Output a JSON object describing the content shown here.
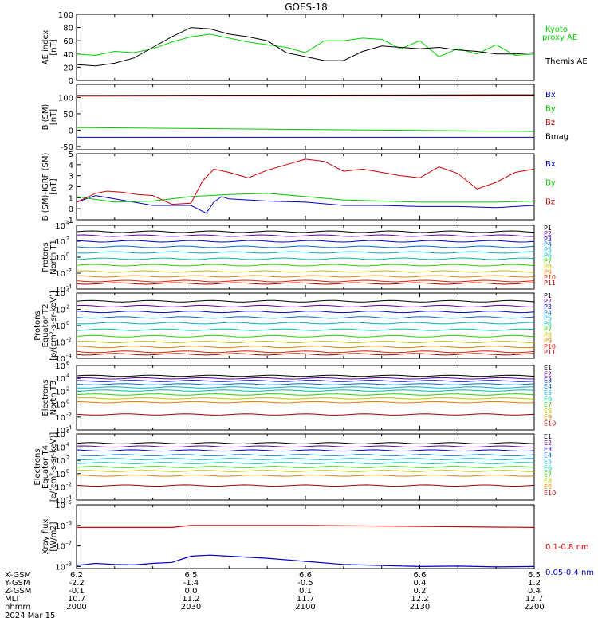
{
  "title": "GOES-18",
  "date": "2024 Mar 15",
  "time_axis": {
    "range": [
      "2000",
      "2200"
    ],
    "row_labels": [
      "X-GSM",
      "Y-GSM",
      "Z-GSM",
      "MLT",
      "hhmm"
    ],
    "columns": [
      {
        "hhmm": "2000",
        "xgsm": "6.2",
        "ygsm": "-2.2",
        "zgsm": "-0.1",
        "mlt": "10.7"
      },
      {
        "hhmm": "2030",
        "xgsm": "6.5",
        "ygsm": "-1.4",
        "zgsm": "0.0",
        "mlt": "11.2"
      },
      {
        "hhmm": "2100",
        "xgsm": "6.6",
        "ygsm": "-0.5",
        "zgsm": "0.1",
        "mlt": "11.7"
      },
      {
        "hhmm": "2130",
        "xgsm": "6.6",
        "ygsm": "0.4",
        "zgsm": "0.2",
        "mlt": "12.2"
      },
      {
        "hhmm": "2200",
        "xgsm": "6.5",
        "ygsm": "1.2",
        "zgsm": "0.4",
        "mlt": "12.7"
      }
    ]
  },
  "colors": {
    "kyoto": "#00d000",
    "themis": "#000000",
    "bx": "#0000c8",
    "by": "#00c800",
    "bz": "#d00000",
    "bmag": "#000000",
    "xray_long": "#d00000",
    "xray_short": "#0000c8"
  },
  "chart_data": [
    {
      "type": "line",
      "id": "ae",
      "ylabel": [
        "AE index",
        "[nT]"
      ],
      "ylim": [
        0,
        100
      ],
      "yticks": [
        "0",
        "20",
        "40",
        "60",
        "80",
        "100"
      ],
      "legend": [
        {
          "label": "Kyoto",
          "label2": "proxy AE",
          "color": "#00d000"
        },
        {
          "label": "Themis AE",
          "color": "#000000"
        }
      ],
      "series": [
        {
          "name": "Kyoto proxy AE",
          "color": "#00d000",
          "x": [
            0,
            5,
            10,
            15,
            20,
            25,
            30,
            35,
            40,
            45,
            50,
            55,
            60,
            65,
            70,
            75,
            80,
            85,
            90,
            95,
            100,
            105,
            110,
            115,
            120
          ],
          "y": [
            40,
            38,
            44,
            42,
            48,
            58,
            66,
            70,
            64,
            58,
            54,
            50,
            42,
            60,
            60,
            64,
            62,
            48,
            60,
            36,
            48,
            40,
            54,
            38,
            40
          ]
        },
        {
          "name": "Themis AE",
          "color": "#000000",
          "x": [
            0,
            5,
            10,
            15,
            20,
            25,
            30,
            35,
            40,
            45,
            50,
            55,
            60,
            65,
            70,
            75,
            80,
            85,
            90,
            95,
            100,
            105,
            110,
            115,
            120
          ],
          "y": [
            24,
            22,
            26,
            34,
            50,
            66,
            80,
            78,
            70,
            66,
            60,
            42,
            36,
            30,
            30,
            44,
            52,
            50,
            48,
            50,
            46,
            44,
            40,
            40,
            42
          ]
        }
      ]
    },
    {
      "type": "line",
      "id": "bsm",
      "ylabel": [
        "B (SM)",
        "[nT]"
      ],
      "ylim": [
        -60,
        140
      ],
      "yticks": [
        "-50",
        "0",
        "50",
        "100"
      ],
      "legend": [
        {
          "label": "Bx",
          "color": "#0000c8"
        },
        {
          "label": "By",
          "color": "#00c800"
        },
        {
          "label": "Bz",
          "color": "#d00000"
        },
        {
          "label": "Bmag",
          "color": "#000000"
        }
      ],
      "series": [
        {
          "name": "Bx",
          "color": "#0000c8",
          "x": [
            0,
            120
          ],
          "y": [
            -22,
            -22
          ]
        },
        {
          "name": "By",
          "color": "#00c800",
          "x": [
            0,
            60,
            120
          ],
          "y": [
            8,
            2,
            -4
          ]
        },
        {
          "name": "Bz",
          "color": "#d00000",
          "x": [
            0,
            120
          ],
          "y": [
            104,
            106
          ]
        },
        {
          "name": "Bmag",
          "color": "#000000",
          "x": [
            0,
            120
          ],
          "y": [
            106,
            108
          ]
        }
      ]
    },
    {
      "type": "line",
      "id": "bigrf",
      "ylabel": [
        "B (SM)-IGRF (SM)",
        "[nT]"
      ],
      "ylim": [
        -1,
        5
      ],
      "yticks": [
        "-1",
        "0",
        "1",
        "2",
        "3",
        "4",
        "5"
      ],
      "legend": [
        {
          "label": "Bx",
          "color": "#0000c8"
        },
        {
          "label": "By",
          "color": "#00c800"
        },
        {
          "label": "Bz",
          "color": "#d00000"
        }
      ],
      "series": [
        {
          "name": "Bx",
          "color": "#0000c8",
          "x": [
            0,
            5,
            10,
            15,
            20,
            25,
            30,
            34,
            36,
            38,
            40,
            45,
            50,
            60,
            70,
            80,
            90,
            100,
            110,
            120
          ],
          "y": [
            0.6,
            1.2,
            0.9,
            0.6,
            0.3,
            0.3,
            0.3,
            -0.4,
            0.6,
            1.1,
            0.9,
            0.8,
            0.7,
            0.6,
            0.3,
            0.3,
            0.2,
            0.2,
            0.1,
            0.3
          ]
        },
        {
          "name": "By",
          "color": "#00c800",
          "x": [
            0,
            10,
            20,
            30,
            40,
            50,
            60,
            70,
            80,
            90,
            100,
            110,
            120
          ],
          "y": [
            1.1,
            0.6,
            0.7,
            1.1,
            1.3,
            1.4,
            1.1,
            0.8,
            0.7,
            0.6,
            0.6,
            0.6,
            0.7
          ]
        },
        {
          "name": "Bz",
          "color": "#d00000",
          "x": [
            0,
            5,
            8,
            12,
            16,
            20,
            25,
            30,
            33,
            36,
            40,
            45,
            50,
            55,
            60,
            65,
            70,
            75,
            80,
            85,
            90,
            95,
            100,
            105,
            110,
            115,
            120
          ],
          "y": [
            0.6,
            1.4,
            1.6,
            1.5,
            1.3,
            1.2,
            0.4,
            0.5,
            2.5,
            3.6,
            3.3,
            2.8,
            3.5,
            4.0,
            4.5,
            4.3,
            3.4,
            3.6,
            3.3,
            3.0,
            2.8,
            3.8,
            3.2,
            1.8,
            2.4,
            3.3,
            3.6
          ]
        }
      ]
    },
    {
      "type": "line",
      "id": "protons_t1",
      "scale": "log",
      "ylabel": [
        "Protons",
        "North T1"
      ],
      "ylim_exp": [
        -4,
        4
      ],
      "yticks": [
        {
          "e": -4,
          "t": "10"
        },
        {
          "e": -2,
          "t": "10"
        },
        {
          "e": 0,
          "t": "10"
        },
        {
          "e": 2,
          "t": "10"
        },
        {
          "e": 4,
          "t": "10"
        }
      ],
      "tick_exponents": [
        "-4",
        "-2",
        "0",
        "2",
        "4"
      ],
      "labels": [
        "P1",
        "P2",
        "P3",
        "P4",
        "P5",
        "P6",
        "P7",
        "P8",
        "P9",
        "P10",
        "P11"
      ],
      "label_colors": [
        "#000000",
        "#6000a0",
        "#0000d0",
        "#0070d0",
        "#00b0d0",
        "#00c0a0",
        "#30d000",
        "#c0c000",
        "#e08000",
        "#e02000",
        "#a00000"
      ],
      "levels_log10": [
        3.2,
        2.7,
        2.0,
        1.3,
        0.6,
        -0.2,
        -1.0,
        -1.8,
        -2.4,
        -3.0,
        -3.3
      ]
    },
    {
      "type": "line",
      "id": "protons_t2",
      "scale": "log",
      "ylabel": [
        "Protons",
        "Equator T2",
        "[p/(cm²-s-sr-keV)]"
      ],
      "ylim_exp": [
        -4,
        4
      ],
      "yticks": [
        {
          "e": -4,
          "t": "10"
        },
        {
          "e": -2,
          "t": "10"
        },
        {
          "e": 0,
          "t": "10"
        },
        {
          "e": 2,
          "t": "10"
        },
        {
          "e": 4,
          "t": "10"
        }
      ],
      "tick_exponents": [
        "-4",
        "-2",
        "0",
        "2",
        "4"
      ],
      "labels": [
        "P1",
        "P2",
        "P3",
        "P4",
        "P5",
        "P6",
        "P7",
        "P8",
        "P9",
        "P10",
        "P11"
      ],
      "label_colors": [
        "#000000",
        "#6000a0",
        "#0000d0",
        "#0070d0",
        "#00b0d0",
        "#00c0a0",
        "#30d000",
        "#c0c000",
        "#e08000",
        "#e02000",
        "#a00000"
      ],
      "levels_log10": [
        3.0,
        2.4,
        1.7,
        1.0,
        0.3,
        -0.5,
        -1.3,
        -2.0,
        -2.6,
        -3.2,
        -3.5
      ]
    },
    {
      "type": "line",
      "id": "electrons_t3",
      "scale": "log",
      "ylabel": [
        "Electrons",
        "North T3"
      ],
      "ylim_exp": [
        -4,
        6
      ],
      "yticks": [
        {
          "e": -4,
          "t": "10"
        },
        {
          "e": -2,
          "t": "10"
        },
        {
          "e": 0,
          "t": "10"
        },
        {
          "e": 2,
          "t": "10"
        },
        {
          "e": 4,
          "t": "10"
        },
        {
          "e": 6,
          "t": "10"
        }
      ],
      "tick_exponents": [
        "-4",
        "-2",
        "0",
        "2",
        "4",
        "6"
      ],
      "labels": [
        "E1",
        "E2",
        "E3",
        "E4",
        "E5",
        "E6",
        "E7",
        "E8",
        "E9",
        "E10"
      ],
      "label_colors": [
        "#000000",
        "#6000a0",
        "#0000d0",
        "#0070d0",
        "#00b0d0",
        "#00c0a0",
        "#30d000",
        "#c0c000",
        "#e08000",
        "#a00000"
      ],
      "levels_log10": [
        4.4,
        4.0,
        3.6,
        3.1,
        2.6,
        2.1,
        1.5,
        0.9,
        0.3,
        -1.6
      ]
    },
    {
      "type": "line",
      "id": "electrons_t4",
      "scale": "log",
      "ylabel": [
        "Electrons",
        "Equator T4",
        "[e/(cm²-s-sr-keV)]"
      ],
      "ylim_exp": [
        -4,
        6
      ],
      "yticks": [
        {
          "e": -4,
          "t": "10"
        },
        {
          "e": -2,
          "t": "10"
        },
        {
          "e": 0,
          "t": "10"
        },
        {
          "e": 2,
          "t": "10"
        },
        {
          "e": 4,
          "t": "10"
        },
        {
          "e": 6,
          "t": "10"
        }
      ],
      "tick_exponents": [
        "-4",
        "-2",
        "0",
        "2",
        "4",
        "6"
      ],
      "labels": [
        "E1",
        "E2",
        "E3",
        "E4",
        "E5",
        "E6",
        "E7",
        "E8",
        "E9",
        "E10"
      ],
      "label_colors": [
        "#000000",
        "#6000a0",
        "#0000d0",
        "#0070d0",
        "#00b0d0",
        "#00c0a0",
        "#30d000",
        "#c0c000",
        "#e08000",
        "#a00000"
      ],
      "levels_log10": [
        4.6,
        4.1,
        3.5,
        2.8,
        2.2,
        1.6,
        1.0,
        0.4,
        -0.3,
        -1.8
      ]
    },
    {
      "type": "line",
      "id": "xray",
      "scale": "log",
      "ylabel": [
        "Xray flux",
        "[W/m2]"
      ],
      "ylim_exp": [
        -8.1,
        -5
      ],
      "yticks": [
        {
          "e": -8,
          "t": "10"
        },
        {
          "e": -7,
          "t": "10"
        },
        {
          "e": -6,
          "t": "10"
        },
        {
          "e": -5,
          "t": "10"
        }
      ],
      "tick_exponents": [
        "-8",
        "-7",
        "-6",
        "-5"
      ],
      "legend": [
        {
          "label": "0.1-0.8 nm",
          "color": "#d00000"
        },
        {
          "label": "0.05-0.4 nm",
          "color": "#0000c8"
        }
      ],
      "series": [
        {
          "name": "0.1-0.8 nm",
          "color": "#d00000",
          "x": [
            0,
            25,
            30,
            60,
            120
          ],
          "y": [
            -6.1,
            -6.1,
            -6.0,
            -6.0,
            -6.1
          ]
        },
        {
          "name": "0.05-0.4 nm",
          "color": "#0000c8",
          "x": [
            0,
            5,
            10,
            15,
            20,
            25,
            30,
            35,
            40,
            50,
            60,
            70,
            80,
            90,
            100,
            110,
            120
          ],
          "y": [
            -7.95,
            -7.85,
            -7.9,
            -7.92,
            -7.85,
            -7.8,
            -7.5,
            -7.45,
            -7.5,
            -7.6,
            -7.75,
            -7.9,
            -7.95,
            -8.0,
            -7.98,
            -8.02,
            -8.0
          ]
        }
      ]
    }
  ]
}
